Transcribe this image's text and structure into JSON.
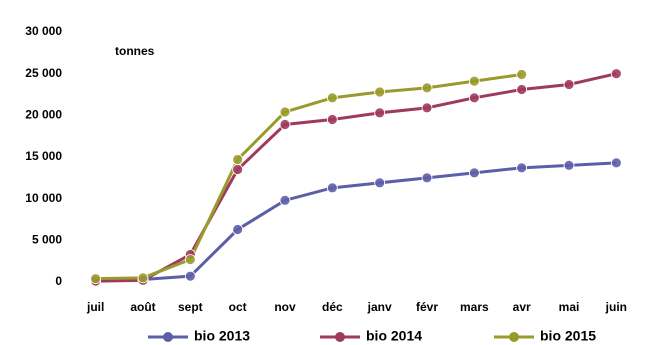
{
  "chart_data": {
    "type": "line",
    "annotation": "tonnes",
    "categories": [
      "juil",
      "août",
      "sept",
      "oct",
      "nov",
      "déc",
      "janv",
      "févr",
      "mars",
      "avr",
      "mai",
      "juin"
    ],
    "series": [
      {
        "name": "bio 2013",
        "color": "#5c5fa8",
        "values": [
          200,
          300,
          700,
          6300,
          9800,
          11300,
          11900,
          12500,
          13100,
          13700,
          14000,
          14300
        ]
      },
      {
        "name": "bio 2014",
        "color": "#9e3a5e",
        "values": [
          100,
          200,
          3300,
          13500,
          18900,
          19500,
          20300,
          20900,
          22100,
          23100,
          23700,
          25000
        ]
      },
      {
        "name": "bio 2015",
        "color": "#9a9a2c",
        "values": [
          400,
          500,
          2700,
          14700,
          20400,
          22100,
          22800,
          23300,
          24100,
          24900,
          null,
          null
        ]
      }
    ],
    "ylim": [
      0,
      30000
    ],
    "yticks": [
      0,
      {
        "value": 5000,
        "label": "5 000"
      },
      {
        "value": 10000,
        "label": "10 000"
      },
      {
        "value": 15000,
        "label": "15 000"
      },
      {
        "value": 20000,
        "label": "20 000"
      },
      {
        "value": 25000,
        "label": "25 000"
      },
      {
        "value": 30000,
        "label": "30 000"
      }
    ],
    "grid": false,
    "legend": "bottom"
  }
}
